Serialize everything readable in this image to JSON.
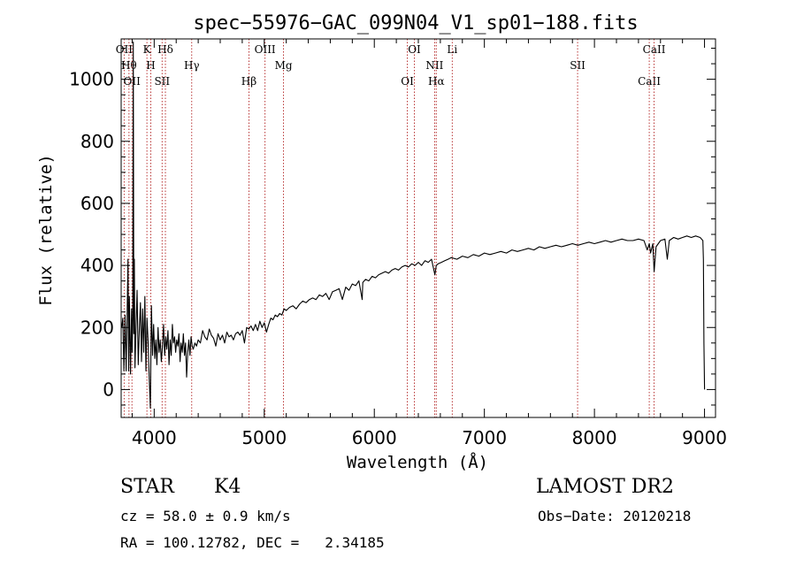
{
  "chart_data": {
    "type": "line",
    "title": "spec−55976−GAC_099N04_V1_sp01−188.fits",
    "xlabel": "Wavelength (Å)",
    "ylabel": "Flux (relative)",
    "xlim": [
      3700,
      9100
    ],
    "ylim": [
      -90,
      1130
    ],
    "x_ticks": [
      4000,
      5000,
      6000,
      7000,
      8000,
      9000
    ],
    "y_ticks": [
      0,
      200,
      400,
      600,
      800,
      1000
    ],
    "grid": false,
    "series": [
      {
        "x": [
          3705,
          3715,
          3725,
          3735,
          3745,
          3755,
          3762,
          3768,
          3775,
          3785,
          3795,
          3800,
          3805,
          3810,
          3815,
          3820,
          3825,
          3835,
          3845,
          3855,
          3865,
          3875,
          3885,
          3895,
          3905,
          3915,
          3925,
          3935,
          3945,
          3955,
          3965,
          3975,
          3985,
          3995,
          4005,
          4015,
          4025,
          4035,
          4045,
          4055,
          4065,
          4075,
          4085,
          4095,
          4105,
          4115,
          4125,
          4135,
          4145,
          4155,
          4165,
          4175,
          4185,
          4195,
          4205,
          4215,
          4225,
          4235,
          4245,
          4255,
          4265,
          4275,
          4285,
          4295,
          4305,
          4315,
          4325,
          4335,
          4345,
          4355,
          4370,
          4385,
          4400,
          4420,
          4440,
          4460,
          4480,
          4500,
          4520,
          4540,
          4560,
          4580,
          4600,
          4620,
          4640,
          4660,
          4680,
          4700,
          4720,
          4740,
          4760,
          4780,
          4800,
          4820,
          4840,
          4860,
          4880,
          4900,
          4920,
          4940,
          4960,
          4980,
          5000,
          5020,
          5040,
          5060,
          5080,
          5100,
          5120,
          5140,
          5160,
          5180,
          5200,
          5230,
          5260,
          5290,
          5320,
          5350,
          5380,
          5410,
          5440,
          5470,
          5500,
          5530,
          5560,
          5590,
          5620,
          5650,
          5680,
          5710,
          5740,
          5770,
          5800,
          5830,
          5860,
          5890,
          5895,
          5920,
          5950,
          5980,
          6010,
          6040,
          6070,
          6100,
          6130,
          6160,
          6190,
          6220,
          6250,
          6280,
          6310,
          6340,
          6370,
          6400,
          6430,
          6460,
          6490,
          6520,
          6550,
          6563,
          6580,
          6610,
          6640,
          6670,
          6700,
          6750,
          6800,
          6850,
          6900,
          6950,
          7000,
          7050,
          7100,
          7150,
          7200,
          7250,
          7300,
          7350,
          7400,
          7450,
          7500,
          7550,
          7600,
          7650,
          7700,
          7750,
          7800,
          7850,
          7900,
          7950,
          8000,
          8050,
          8100,
          8150,
          8200,
          8250,
          8300,
          8350,
          8400,
          8450,
          8480,
          8498,
          8510,
          8530,
          8542,
          8560,
          8600,
          8640,
          8662,
          8680,
          8720,
          8760,
          8800,
          8840,
          8880,
          8920,
          8960,
          8985,
          8990,
          8995,
          9000
        ],
        "y": [
          200,
          230,
          60,
          240,
          60,
          250,
          420,
          60,
          300,
          50,
          260,
          120,
          230,
          1120,
          180,
          420,
          70,
          200,
          320,
          80,
          190,
          280,
          90,
          260,
          120,
          300,
          60,
          230,
          150,
          40,
          -60,
          270,
          110,
          210,
          100,
          160,
          80,
          200,
          120,
          160,
          90,
          140,
          210,
          110,
          170,
          130,
          190,
          80,
          160,
          110,
          210,
          150,
          170,
          120,
          160,
          140,
          180,
          90,
          150,
          120,
          180,
          110,
          150,
          40,
          120,
          160,
          110,
          170,
          140,
          130,
          150,
          140,
          160,
          150,
          190,
          170,
          160,
          195,
          175,
          165,
          140,
          180,
          160,
          175,
          150,
          185,
          170,
          175,
          160,
          180,
          185,
          175,
          190,
          150,
          200,
          195,
          205,
          190,
          210,
          190,
          220,
          200,
          215,
          185,
          210,
          230,
          225,
          240,
          235,
          245,
          240,
          260,
          255,
          265,
          270,
          260,
          275,
          285,
          280,
          290,
          295,
          290,
          305,
          300,
          310,
          290,
          315,
          320,
          325,
          290,
          330,
          320,
          340,
          335,
          350,
          290,
          345,
          355,
          350,
          365,
          360,
          370,
          375,
          380,
          375,
          385,
          390,
          385,
          395,
          400,
          395,
          405,
          400,
          410,
          400,
          415,
          410,
          420,
          370,
          400,
          405,
          410,
          415,
          420,
          425,
          420,
          430,
          425,
          435,
          430,
          440,
          435,
          440,
          445,
          440,
          450,
          445,
          450,
          455,
          450,
          460,
          455,
          460,
          465,
          460,
          465,
          470,
          465,
          470,
          475,
          470,
          475,
          480,
          475,
          480,
          485,
          480,
          480,
          485,
          480,
          450,
          470,
          440,
          470,
          380,
          460,
          480,
          485,
          420,
          480,
          490,
          485,
          490,
          495,
          490,
          495,
          490,
          480,
          420,
          150,
          0
        ]
      }
    ],
    "lines": [
      {
        "wl": 3727,
        "label": "OII"
      },
      {
        "wl": 3771,
        "label": "Hθ"
      },
      {
        "wl": 3798,
        "label": "OII"
      },
      {
        "wl": 3934,
        "label": "K"
      },
      {
        "wl": 3969,
        "label": "H"
      },
      {
        "wl": 4072,
        "label": "SII"
      },
      {
        "wl": 4102,
        "label": "Hδ"
      },
      {
        "wl": 4341,
        "label": "Hγ"
      },
      {
        "wl": 4861,
        "label": "Hβ"
      },
      {
        "wl": 5007,
        "label": "OIII"
      },
      {
        "wl": 5175,
        "label": "Mg"
      },
      {
        "wl": 6300,
        "label": "OI"
      },
      {
        "wl": 6364,
        "label": "OI"
      },
      {
        "wl": 6548,
        "label": "NII"
      },
      {
        "wl": 6563,
        "label": "Hα"
      },
      {
        "wl": 6708,
        "label": "Li"
      },
      {
        "wl": 7847,
        "label": "SII"
      },
      {
        "wl": 8498,
        "label": "CaII"
      },
      {
        "wl": 8542,
        "label": "CaII"
      }
    ]
  },
  "info": {
    "class": "STAR",
    "subclass": "K4",
    "survey": "LAMOST DR2",
    "cz": "cz = 58.0 ± 0.9 km/s",
    "obs_date": "Obs−Date: 20120218",
    "radec": "RA = 100.12782, DEC =   2.34185"
  }
}
